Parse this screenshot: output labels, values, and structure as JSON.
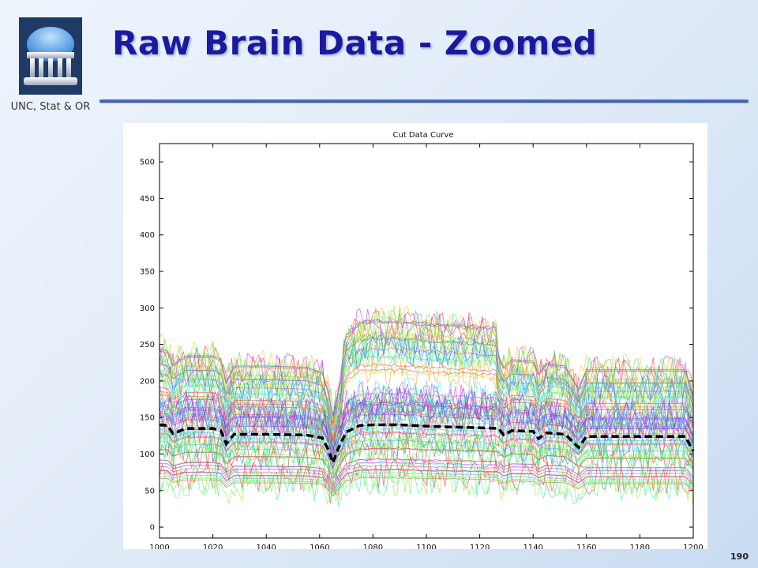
{
  "slide": {
    "title": "Raw Brain Data - Zoomed",
    "org": "UNC, Stat & OR",
    "page_number": "190",
    "logo_icon": "old-well-icon",
    "accent": "#1a1aa0"
  },
  "chart_data": {
    "type": "line",
    "title": "Cut Data Curve",
    "xlabel": "",
    "ylabel": "",
    "xlim": [
      1000,
      1200
    ],
    "ylim": [
      -15,
      525
    ],
    "xticks": [
      1000,
      1020,
      1040,
      1060,
      1080,
      1100,
      1120,
      1140,
      1160,
      1180,
      1200
    ],
    "yticks": [
      0,
      50,
      100,
      150,
      200,
      250,
      300,
      350,
      400,
      450,
      500
    ],
    "grid": false,
    "legend": "none",
    "mean_curve": {
      "style": "black dashed",
      "x": [
        1000,
        1003,
        1005,
        1010,
        1020,
        1023,
        1025,
        1028,
        1040,
        1055,
        1061,
        1063,
        1065,
        1067,
        1070,
        1075,
        1080,
        1090,
        1100,
        1110,
        1120,
        1127,
        1129,
        1132,
        1140,
        1142,
        1145,
        1152,
        1157,
        1160,
        1170,
        1180,
        1190,
        1197,
        1200
      ],
      "y": [
        140,
        139,
        128,
        135,
        135,
        132,
        114,
        127,
        127,
        126,
        122,
        108,
        88,
        108,
        130,
        139,
        140,
        140,
        138,
        137,
        136,
        135,
        126,
        132,
        131,
        121,
        129,
        127,
        109,
        124,
        124,
        124,
        124,
        124,
        104
      ]
    },
    "series_count_approx": 80
  }
}
